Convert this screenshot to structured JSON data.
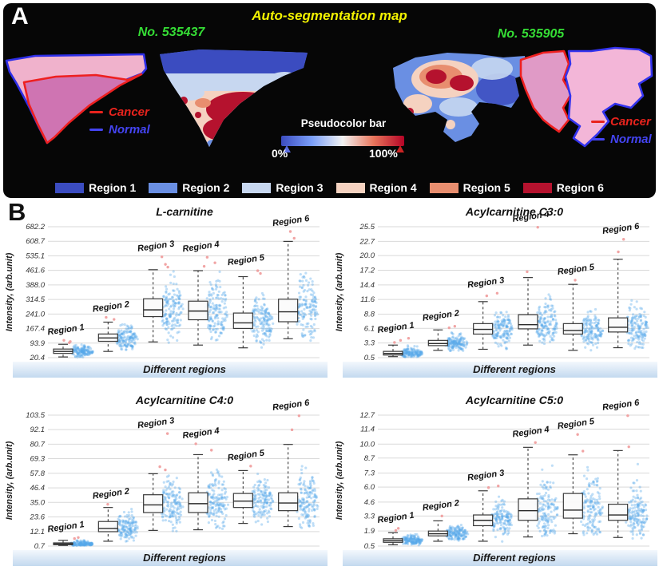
{
  "panel_a": {
    "label": "A",
    "title": "Auto-segmentation map",
    "title_color": "#f2f200",
    "sample_id_color": "#35dd35",
    "samples": [
      {
        "id": "No. 535437"
      },
      {
        "id": "No. 535905"
      }
    ],
    "annotations": {
      "cancer_label": "Cancer",
      "normal_label": "Normal",
      "cancer_color": "#e8231d",
      "normal_color": "#4444f2"
    },
    "pseudocolor_bar": {
      "label": "Pseudocolor bar",
      "min_label": "0%",
      "max_label": "100%",
      "colors": [
        "#3b4cc0",
        "#7b9ff9",
        "#f2f2f2",
        "#e8765c",
        "#b40426"
      ]
    },
    "regions": [
      {
        "label": "Region 1",
        "color": "#3b4cc0"
      },
      {
        "label": "Region 2",
        "color": "#6a8fe3"
      },
      {
        "label": "Region 3",
        "color": "#c7d7f0"
      },
      {
        "label": "Region 4",
        "color": "#f5d2c0"
      },
      {
        "label": "Region 5",
        "color": "#e88e6f"
      },
      {
        "label": "Region 6",
        "color": "#b5122e"
      }
    ]
  },
  "panel_b": {
    "label": "B",
    "scatter_color": "#57a7ea",
    "outlier_color": "#f09a9a",
    "grid_color": "#d9d9d9",
    "band_text_color": "#1a1a1a"
  },
  "chart_data": [
    {
      "type": "box",
      "title": "L-carnitine",
      "ylabel": "Intensity, (arb.unit)",
      "xlabel": "Different regions",
      "ytick_labels": [
        "20.4",
        "93.9",
        "167.4",
        "241.0",
        "314.5",
        "388.0",
        "461.6",
        "535.1",
        "608.7",
        "682.2"
      ],
      "ylim": [
        20.4,
        682.2
      ],
      "grid": true,
      "categories": [
        "Region 1",
        "Region 2",
        "Region 3",
        "Region 4",
        "Region 5",
        "Region 6"
      ],
      "boxes": [
        {
          "min": 24,
          "q1": 42,
          "median": 52,
          "q3": 64,
          "max": 88,
          "outliers": [
            96,
            102,
            108
          ]
        },
        {
          "min": 52,
          "q1": 103,
          "median": 120,
          "q3": 140,
          "max": 200,
          "outliers": [
            214,
            224
          ]
        },
        {
          "min": 100,
          "q1": 228,
          "median": 262,
          "q3": 318,
          "max": 465,
          "outliers": [
            478,
            492,
            530
          ]
        },
        {
          "min": 84,
          "q1": 212,
          "median": 256,
          "q3": 306,
          "max": 460,
          "outliers": [
            482,
            500,
            528
          ]
        },
        {
          "min": 70,
          "q1": 168,
          "median": 196,
          "q3": 246,
          "max": 430,
          "outliers": [
            446,
            460
          ]
        },
        {
          "min": 116,
          "q1": 202,
          "median": 252,
          "q3": 316,
          "max": 608,
          "outliers": [
            624,
            658
          ]
        }
      ]
    },
    {
      "type": "box",
      "title": "Acylcarnitine C3:0",
      "ylabel": "Intensity, (arb.unit)",
      "xlabel": "Different regions",
      "ytick_labels": [
        "0.5",
        "3.3",
        "6.1",
        "8.8",
        "11.6",
        "14.4",
        "17.2",
        "20.0",
        "22.7",
        "25.5"
      ],
      "ylim": [
        0.5,
        25.5
      ],
      "grid": true,
      "categories": [
        "Region 1",
        "Region 2",
        "Region 3",
        "Region 4",
        "Region 5",
        "Region 6"
      ],
      "boxes": [
        {
          "min": 0.7,
          "q1": 1.0,
          "median": 1.3,
          "q3": 1.7,
          "max": 2.9,
          "outliers": [
            3.4,
            3.8,
            4.2
          ]
        },
        {
          "min": 1.9,
          "q1": 2.8,
          "median": 3.2,
          "q3": 3.8,
          "max": 5.8,
          "outliers": [
            6.2,
            6.5
          ]
        },
        {
          "min": 2.1,
          "q1": 5.0,
          "median": 5.9,
          "q3": 7.0,
          "max": 11.2,
          "outliers": [
            12.3,
            12.8
          ]
        },
        {
          "min": 2.9,
          "q1": 6.0,
          "median": 6.8,
          "q3": 8.7,
          "max": 15.8,
          "outliers": [
            16.9,
            25.4
          ]
        },
        {
          "min": 1.9,
          "q1": 5.0,
          "median": 5.7,
          "q3": 7.0,
          "max": 14.5,
          "outliers": [
            15.3
          ]
        },
        {
          "min": 2.4,
          "q1": 5.4,
          "median": 6.3,
          "q3": 8.1,
          "max": 19.3,
          "outliers": [
            20.7,
            23.1
          ]
        }
      ]
    },
    {
      "type": "box",
      "title": "Acylcarnitine C4:0",
      "ylabel": "Intensity, (arb.unit)",
      "xlabel": "Different regions",
      "ytick_labels": [
        "0.7",
        "12.1",
        "23.6",
        "35.0",
        "46.4",
        "57.8",
        "69.3",
        "80.7",
        "92.1",
        "103.5"
      ],
      "ylim": [
        0.7,
        103.5
      ],
      "grid": true,
      "categories": [
        "Region 1",
        "Region 2",
        "Region 3",
        "Region 4",
        "Region 5",
        "Region 6"
      ],
      "boxes": [
        {
          "min": 1.2,
          "q1": 1.8,
          "median": 2.4,
          "q3": 3.2,
          "max": 5.2,
          "outliers": [
            6.6,
            7.4
          ]
        },
        {
          "min": 4.5,
          "q1": 12.0,
          "median": 14.5,
          "q3": 20.0,
          "max": 31.0,
          "outliers": [
            33.5
          ]
        },
        {
          "min": 13,
          "q1": 27,
          "median": 33,
          "q3": 41,
          "max": 57.5,
          "outliers": [
            60.5,
            63,
            89
          ]
        },
        {
          "min": 13.5,
          "q1": 27,
          "median": 34,
          "q3": 42.5,
          "max": 72.5,
          "outliers": [
            76,
            81
          ]
        },
        {
          "min": 18.5,
          "q1": 31,
          "median": 36,
          "q3": 42,
          "max": 60,
          "outliers": [
            63.5
          ]
        },
        {
          "min": 16,
          "q1": 28.5,
          "median": 34.5,
          "q3": 42.5,
          "max": 80.5,
          "outliers": [
            92,
            103
          ]
        }
      ]
    },
    {
      "type": "box",
      "title": "Acylcarnitine C5:0",
      "ylabel": "Intensity, (arb.unit)",
      "xlabel": "Different regions",
      "ytick_labels": [
        "0.5",
        "1.9",
        "3.3",
        "4.6",
        "6.0",
        "7.3",
        "8.7",
        "10.0",
        "11.4",
        "12.7"
      ],
      "ylim": [
        0.5,
        12.7
      ],
      "grid": true,
      "categories": [
        "Region 1",
        "Region 2",
        "Region 3",
        "Region 4",
        "Region 5",
        "Region 6"
      ],
      "boxes": [
        {
          "min": 0.62,
          "q1": 0.85,
          "median": 1.0,
          "q3": 1.18,
          "max": 1.75,
          "outliers": [
            1.95,
            2.15
          ]
        },
        {
          "min": 0.95,
          "q1": 1.45,
          "median": 1.65,
          "q3": 1.9,
          "max": 2.85,
          "outliers": [
            3.3
          ]
        },
        {
          "min": 0.95,
          "q1": 2.4,
          "median": 2.9,
          "q3": 3.4,
          "max": 5.65,
          "outliers": [
            5.95,
            6.1
          ]
        },
        {
          "min": 1.35,
          "q1": 2.9,
          "median": 3.8,
          "q3": 4.9,
          "max": 9.7,
          "outliers": [
            10.15
          ]
        },
        {
          "min": 1.65,
          "q1": 3.1,
          "median": 3.85,
          "q3": 5.4,
          "max": 9.0,
          "outliers": [
            9.35,
            10.9
          ]
        },
        {
          "min": 1.3,
          "q1": 2.9,
          "median": 3.4,
          "q3": 4.4,
          "max": 9.4,
          "outliers": [
            9.75,
            12.65
          ]
        }
      ]
    }
  ]
}
